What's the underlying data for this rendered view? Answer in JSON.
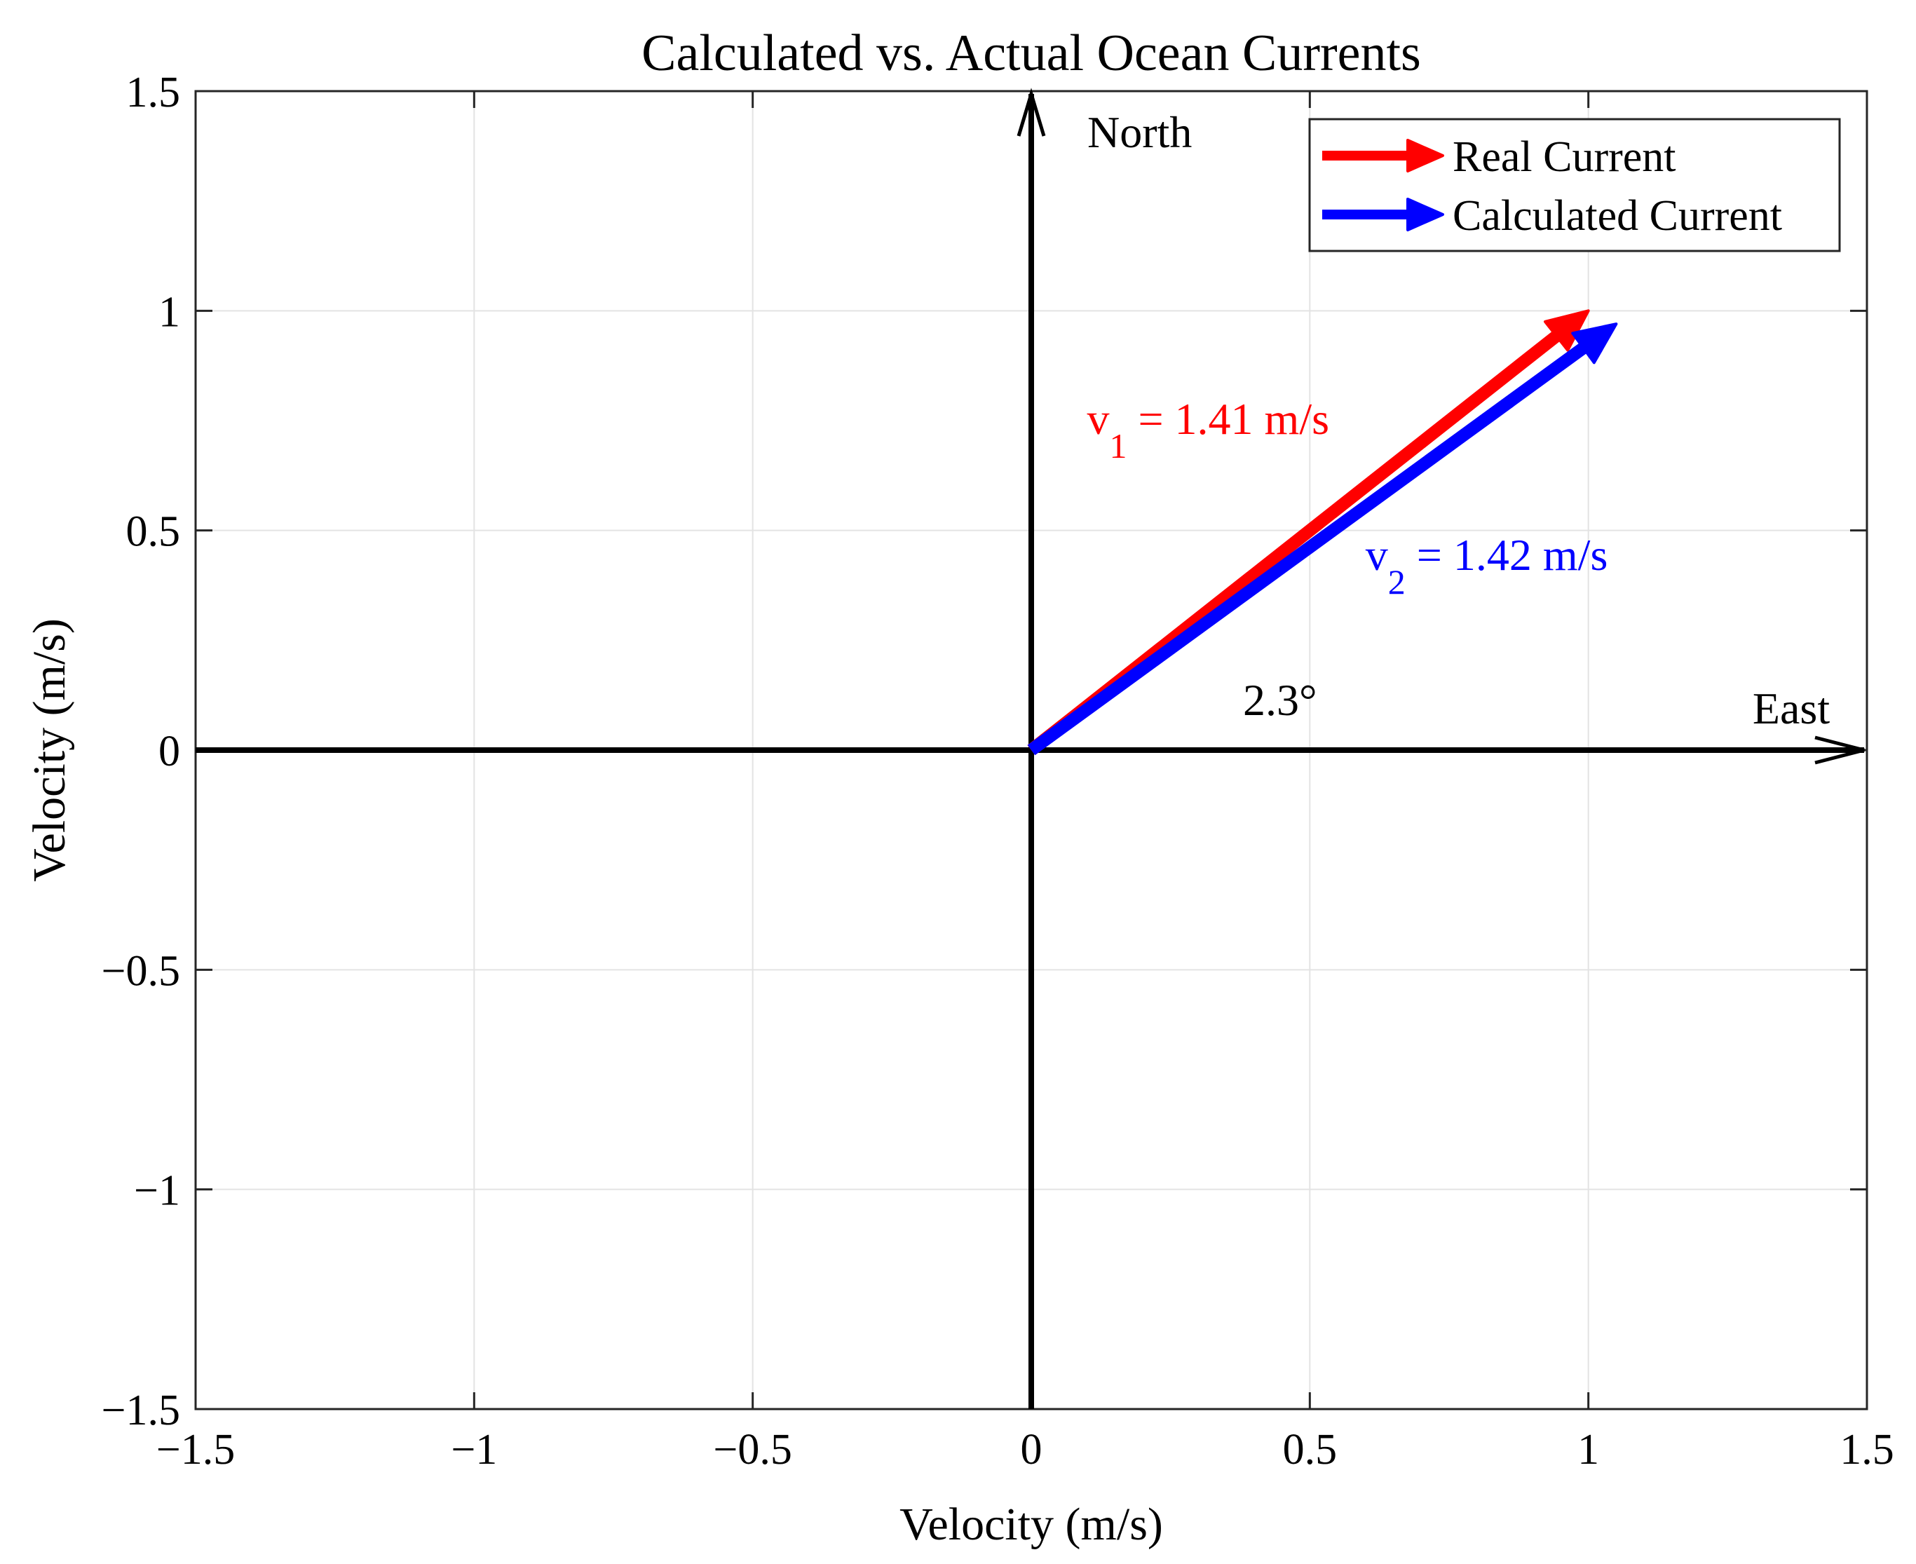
{
  "chart_data": {
    "type": "vector",
    "title": "Calculated vs. Actual Ocean Currents",
    "xlabel": "Velocity (m/s)",
    "ylabel": "Velocity (m/s)",
    "xlim": [
      -1.5,
      1.5
    ],
    "ylim": [
      -1.5,
      1.5
    ],
    "xticks": [
      -1.5,
      -1,
      -0.5,
      0,
      0.5,
      1,
      1.5
    ],
    "yticks": [
      -1.5,
      -1,
      -0.5,
      0,
      0.5,
      1,
      1.5
    ],
    "xtick_labels": [
      "−1.5",
      "−1",
      "−0.5",
      "0",
      "0.5",
      "1",
      "1.5"
    ],
    "ytick_labels": [
      "−1.5",
      "−1",
      "−0.5",
      "0",
      "0.5",
      "1",
      "1.5"
    ],
    "grid": true,
    "compass": {
      "north_label": "North",
      "east_label": "East"
    },
    "series": [
      {
        "name": "Real Current",
        "color": "#ff0000",
        "start": [
          0,
          0
        ],
        "end": [
          1.0,
          1.0
        ],
        "annotation": {
          "base": "v",
          "sub": "1",
          "rest": " = 1.41 m/s",
          "x": 0.1,
          "y": 0.72
        }
      },
      {
        "name": "Calculated Current",
        "color": "#0000ff",
        "start": [
          0,
          0
        ],
        "end": [
          1.05,
          0.97
        ],
        "annotation": {
          "base": "v",
          "sub": "2",
          "rest": " = 1.42 m/s",
          "x": 0.6,
          "y": 0.41
        }
      }
    ],
    "angle_annotation": {
      "text": "2.3°",
      "x": 0.38,
      "y": 0.08
    },
    "legend": {
      "position": "top-right",
      "entries": [
        "Real Current",
        "Calculated Current"
      ]
    }
  }
}
